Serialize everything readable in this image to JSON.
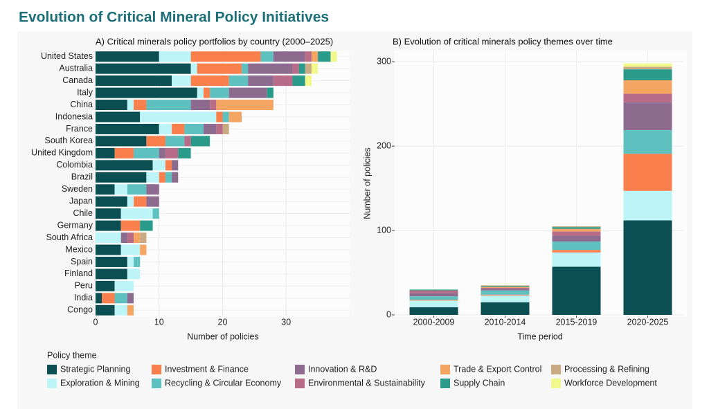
{
  "title": "Evolution of Critical Mineral Policy Initiatives",
  "legend_title": "Policy theme",
  "chart_data": [
    {
      "type": "bar",
      "orientation": "horizontal",
      "stacked": true,
      "title": "A) Critical minerals policy portfolios by country (2000–2025)",
      "xlabel": "Number of policies",
      "categories": [
        "United States",
        "Australia",
        "Canada",
        "Italy",
        "China",
        "Indonesia",
        "France",
        "South Korea",
        "United Kingdom",
        "Colombia",
        "Brazil",
        "Sweden",
        "Japan",
        "Chile",
        "Germany",
        "South Africa",
        "Mexico",
        "Spain",
        "Finland",
        "Peru",
        "India",
        "Congo"
      ],
      "series": [
        {
          "name": "Strategic Planning",
          "color": "#0b4f52",
          "values": [
            10,
            15,
            12,
            16,
            5,
            7,
            10,
            8,
            3,
            9,
            8,
            3,
            5,
            4,
            4,
            0,
            4,
            5,
            5,
            3,
            1,
            3
          ]
        },
        {
          "name": "Exploration & Mining",
          "color": "#bdf4f7",
          "values": [
            5,
            1,
            3,
            1,
            1,
            12,
            2,
            0,
            0,
            2,
            2,
            2,
            1,
            5,
            0,
            4,
            3,
            1,
            2,
            3,
            0,
            2
          ]
        },
        {
          "name": "Investment & Finance",
          "color": "#f9804d",
          "values": [
            11,
            7,
            6,
            1,
            2,
            1,
            2,
            3,
            3,
            1,
            1,
            0,
            2,
            0,
            3,
            0,
            0,
            0,
            0,
            0,
            2,
            0
          ]
        },
        {
          "name": "Recycling & Circular Economy",
          "color": "#5fc0c0",
          "values": [
            2,
            1,
            3,
            3,
            7,
            1,
            3,
            3,
            4,
            0,
            1,
            3,
            0,
            1,
            0,
            0,
            0,
            1,
            0,
            0,
            2,
            0
          ]
        },
        {
          "name": "Innovation & R&D",
          "color": "#8c6b8f",
          "values": [
            5,
            7,
            4,
            6,
            3,
            0,
            2,
            0,
            1,
            1,
            1,
            2,
            2,
            0,
            0,
            1,
            0,
            0,
            0,
            0,
            1,
            0
          ]
        },
        {
          "name": "Environmental & Sustainability",
          "color": "#b86c88",
          "values": [
            1,
            1,
            3,
            0,
            1,
            0,
            1,
            1,
            2,
            0,
            0,
            0,
            0,
            0,
            0,
            1,
            0,
            0,
            0,
            0,
            0,
            0
          ]
        },
        {
          "name": "Trade & Export Control",
          "color": "#f4a562",
          "values": [
            1,
            0,
            0,
            0,
            9,
            2,
            0,
            0,
            0,
            0,
            0,
            0,
            0,
            0,
            0,
            1,
            1,
            0,
            0,
            0,
            0,
            1
          ]
        },
        {
          "name": "Supply Chain",
          "color": "#2a9a8a",
          "values": [
            2,
            1,
            2,
            1,
            0,
            0,
            0,
            3,
            2,
            0,
            0,
            0,
            0,
            0,
            2,
            0,
            0,
            0,
            0,
            0,
            0,
            0
          ]
        },
        {
          "name": "Processing & Refining",
          "color": "#c9aa83",
          "values": [
            0,
            1,
            0,
            0,
            0,
            0,
            1,
            0,
            0,
            0,
            0,
            0,
            0,
            0,
            0,
            1,
            0,
            0,
            0,
            0,
            0,
            0
          ]
        },
        {
          "name": "Workforce Development",
          "color": "#f1f88c",
          "values": [
            1,
            1,
            1,
            0,
            0,
            0,
            0,
            0,
            0,
            0,
            0,
            0,
            0,
            0,
            0,
            0,
            0,
            0,
            0,
            0,
            0,
            0
          ]
        }
      ],
      "xlim": [
        0,
        40
      ],
      "xticks": [
        0,
        10,
        20,
        30
      ],
      "grid": true
    },
    {
      "type": "bar",
      "orientation": "vertical",
      "stacked": true,
      "title": "B) Evolution of critical minerals policy themes over time",
      "xlabel": "Time period",
      "ylabel": "Number of policies",
      "categories": [
        "2000-2009",
        "2010-2014",
        "2015-2019",
        "2020-2025"
      ],
      "series": [
        {
          "name": "Strategic Planning",
          "color": "#0b4f52",
          "values": [
            9,
            15,
            57,
            112
          ]
        },
        {
          "name": "Exploration & Mining",
          "color": "#bdf4f7",
          "values": [
            8,
            8,
            17,
            35
          ]
        },
        {
          "name": "Investment & Finance",
          "color": "#f9804d",
          "values": [
            1,
            1,
            3,
            44
          ]
        },
        {
          "name": "Recycling & Circular Economy",
          "color": "#5fc0c0",
          "values": [
            4,
            5,
            10,
            28
          ]
        },
        {
          "name": "Innovation & R&D",
          "color": "#8c6b8f",
          "values": [
            4,
            2,
            7,
            33
          ]
        },
        {
          "name": "Environmental & Sustainability",
          "color": "#b86c88",
          "values": [
            3,
            1,
            5,
            10
          ]
        },
        {
          "name": "Trade & Export Control",
          "color": "#f4a562",
          "values": [
            0,
            1,
            3,
            16
          ]
        },
        {
          "name": "Supply Chain",
          "color": "#2a9a8a",
          "values": [
            1,
            1,
            2,
            13
          ]
        },
        {
          "name": "Processing & Refining",
          "color": "#c9aa83",
          "values": [
            0,
            1,
            1,
            3
          ]
        },
        {
          "name": "Workforce Development",
          "color": "#f1f88c",
          "values": [
            0,
            0,
            0,
            4
          ]
        }
      ],
      "ylim": [
        0,
        310
      ],
      "yticks": [
        0,
        100,
        200,
        300
      ],
      "grid": true
    }
  ]
}
